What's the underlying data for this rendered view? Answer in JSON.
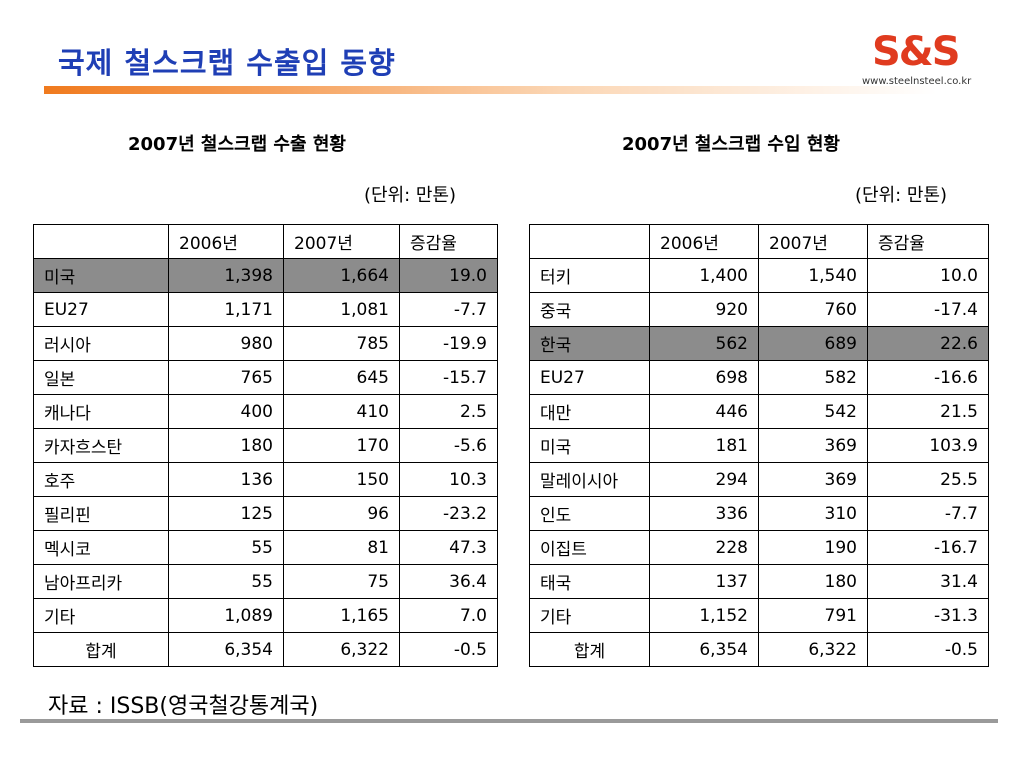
{
  "slide": {
    "title": "국제 철스크랩 수출입 동향",
    "logo": "S&S",
    "logo_url": "www.steelnsteel.co.kr",
    "source": "자료 : ISSB(영국철강통계국)"
  },
  "export": {
    "title": "2007년 철스크랩 수출 현황",
    "unit": "(단위: 만톤)",
    "headers": [
      "",
      "2006년",
      "2007년",
      "증감율"
    ],
    "rows": [
      {
        "name": "미국",
        "y2006": "1,398",
        "y2007": "1,664",
        "change": "19.0",
        "highlight": true
      },
      {
        "name": "EU27",
        "y2006": "1,171",
        "y2007": "1,081",
        "change": "-7.7"
      },
      {
        "name": "러시아",
        "y2006": "980",
        "y2007": "785",
        "change": "-19.9"
      },
      {
        "name": "일본",
        "y2006": "765",
        "y2007": "645",
        "change": "-15.7"
      },
      {
        "name": "캐나다",
        "y2006": "400",
        "y2007": "410",
        "change": "2.5"
      },
      {
        "name": "카자흐스탄",
        "y2006": "180",
        "y2007": "170",
        "change": "-5.6"
      },
      {
        "name": "호주",
        "y2006": "136",
        "y2007": "150",
        "change": "10.3"
      },
      {
        "name": "필리핀",
        "y2006": "125",
        "y2007": "96",
        "change": "-23.2"
      },
      {
        "name": "멕시코",
        "y2006": "55",
        "y2007": "81",
        "change": "47.3"
      },
      {
        "name": "남아프리카",
        "y2006": "55",
        "y2007": "75",
        "change": "36.4"
      },
      {
        "name": "기타",
        "y2006": "1,089",
        "y2007": "1,165",
        "change": "7.0"
      },
      {
        "name": "합계",
        "y2006": "6,354",
        "y2007": "6,322",
        "change": "-0.5",
        "total": true
      }
    ]
  },
  "import": {
    "title": "2007년 철스크랩 수입 현황",
    "unit": "(단위: 만톤)",
    "headers": [
      "",
      "2006년",
      "2007년",
      "증감율"
    ],
    "rows": [
      {
        "name": "터키",
        "y2006": "1,400",
        "y2007": "1,540",
        "change": "10.0"
      },
      {
        "name": "중국",
        "y2006": "920",
        "y2007": "760",
        "change": "-17.4"
      },
      {
        "name": "한국",
        "y2006": "562",
        "y2007": "689",
        "change": "22.6",
        "highlight": true
      },
      {
        "name": "EU27",
        "y2006": "698",
        "y2007": "582",
        "change": "-16.6"
      },
      {
        "name": "대만",
        "y2006": "446",
        "y2007": "542",
        "change": "21.5"
      },
      {
        "name": "미국",
        "y2006": "181",
        "y2007": "369",
        "change": "103.9"
      },
      {
        "name": "말레이시아",
        "y2006": "294",
        "y2007": "369",
        "change": "25.5"
      },
      {
        "name": "인도",
        "y2006": "336",
        "y2007": "310",
        "change": "-7.7"
      },
      {
        "name": "이집트",
        "y2006": "228",
        "y2007": "190",
        "change": "-16.7"
      },
      {
        "name": "태국",
        "y2006": "137",
        "y2007": "180",
        "change": "31.4"
      },
      {
        "name": "기타",
        "y2006": "1,152",
        "y2007": "791",
        "change": "-31.3"
      },
      {
        "name": "합계",
        "y2006": "6,354",
        "y2007": "6,322",
        "change": "-0.5",
        "total": true
      }
    ]
  }
}
